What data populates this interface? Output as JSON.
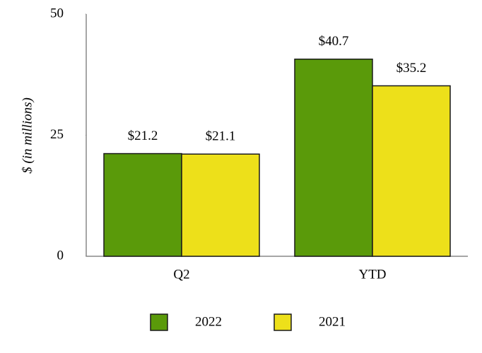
{
  "chart_data": {
    "type": "bar",
    "y_label": "$ (in millions)",
    "categories": [
      "Q2",
      "YTD"
    ],
    "series": [
      {
        "name": "2022",
        "color": "#5a9a0a",
        "values": [
          21.2,
          40.7
        ],
        "value_labels": [
          "$21.2",
          "$40.7"
        ]
      },
      {
        "name": "2021",
        "color": "#ede01a",
        "values": [
          21.1,
          35.2
        ],
        "value_labels": [
          "$21.1",
          "$35.2"
        ]
      }
    ],
    "ylim": [
      0,
      50
    ],
    "yticks": [
      0,
      25,
      50
    ],
    "grid": false,
    "legend": "bottom"
  }
}
